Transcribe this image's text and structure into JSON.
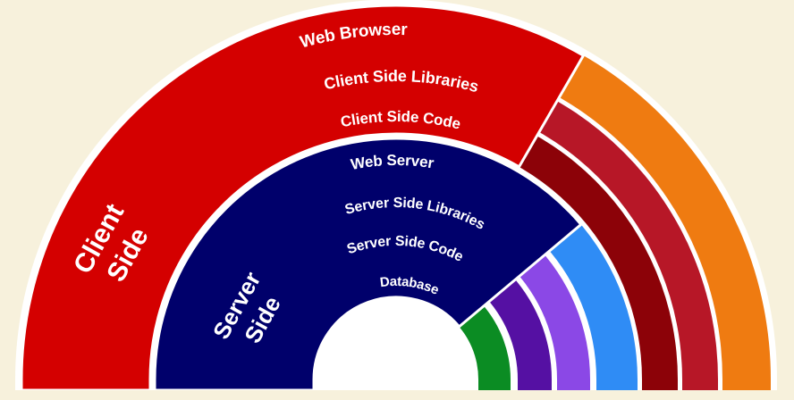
{
  "background": "#f7f1dc",
  "diagram": {
    "rings": [
      {
        "label": "Web Browser",
        "color": "#ef7b11"
      },
      {
        "label": "Client Side Libraries",
        "color": "#b71727"
      },
      {
        "label": "Client Side Code",
        "color": "#8c0208"
      },
      {
        "label": "Web Server",
        "color": "#2f8cf5"
      },
      {
        "label": "Server Side Libraries",
        "color": "#8b48e6"
      },
      {
        "label": "Server Side Code",
        "color": "#5510a3"
      },
      {
        "label": "Database",
        "color": "#0b8c23"
      }
    ],
    "sectors": [
      {
        "label_lines": [
          "Client",
          "Side"
        ],
        "color": "#d40000"
      },
      {
        "label_lines": [
          "Server",
          "Side"
        ],
        "color": "#00006b"
      }
    ]
  }
}
